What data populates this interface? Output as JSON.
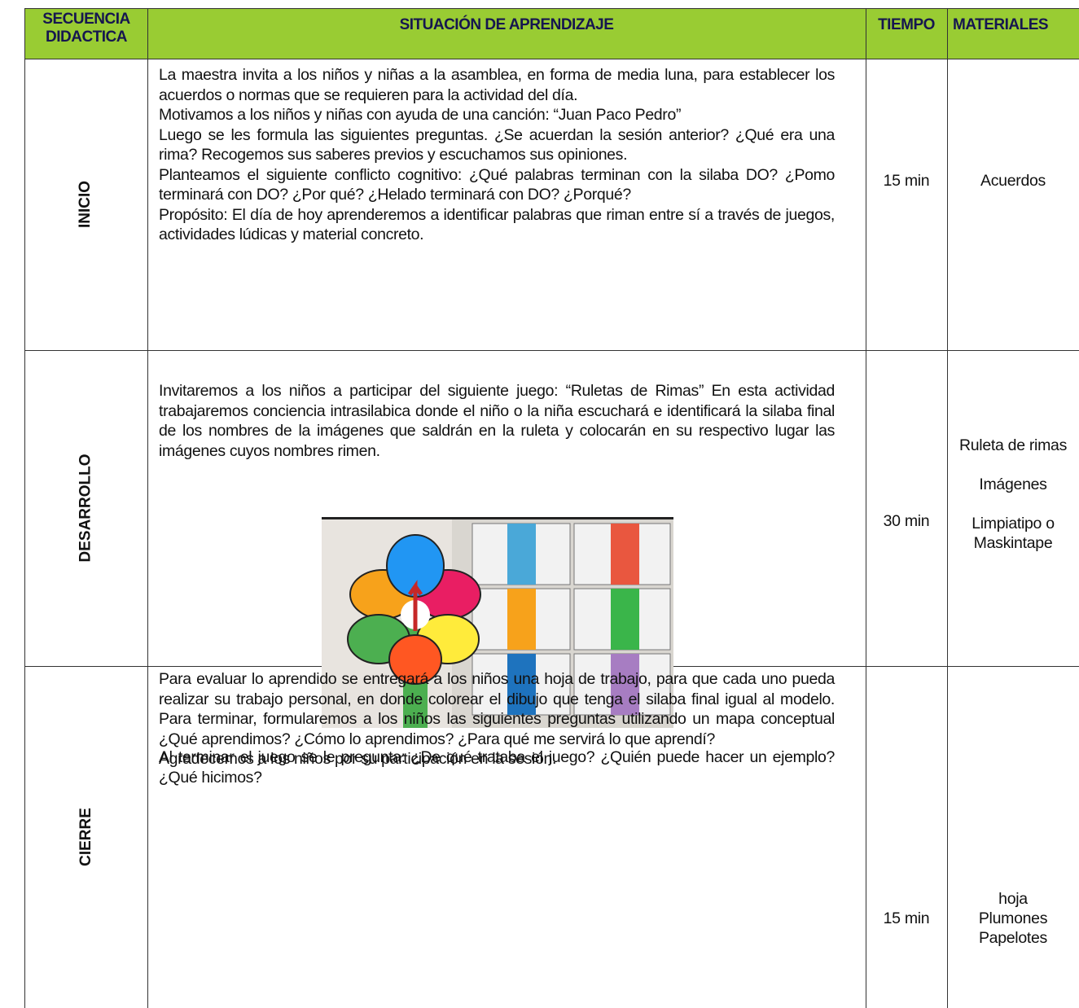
{
  "header": {
    "columns": [
      "SECUENCIA DIDACTICA",
      "SITUACIÓN DE APRENDIZAJE",
      "TIEMPO",
      "MATERIALES"
    ]
  },
  "rows": [
    {
      "stage": "INICIO",
      "content": [
        "La maestra invita a los niños y niñas a la asamblea, en forma de media luna, para establecer los acuerdos o normas que se requieren para la actividad del día.",
        "Motivamos a los niños y niñas con ayuda de una canción: “Juan Paco Pedro”",
        "Luego se les formula las siguientes preguntas. ¿Se acuerdan la sesión anterior? ¿Qué era una rima? Recogemos sus saberes previos y escuchamos sus opiniones.",
        "Planteamos el siguiente conflicto cognitivo: ¿Qué palabras terminan con la silaba DO? ¿Pomo terminará con DO? ¿Por qué? ¿Helado terminará con DO? ¿Porqué?",
        "Propósito: El día de hoy aprenderemos a identificar palabras que riman entre sí a través de juegos, actividades lúdicas y material concreto."
      ],
      "time": "15 min",
      "materials": [
        "Acuerdos"
      ]
    },
    {
      "stage": "DESARROLLO",
      "content": [
        "Invitaremos a los niños a participar del siguiente juego: “Ruletas de Rimas” En esta actividad trabajaremos conciencia intrasilabica donde el niño o la niña escuchará e identificará la silaba final de los nombres de la imágenes que saldrán en la ruleta y colocarán en su respectivo lugar las imágenes cuyos nombres rimen."
      ],
      "content_after": [
        "Al terminar el juego se le pregunta: ¿De qué trataba el juego? ¿Quién puede hacer un ejemplo? ¿Qué hicimos?"
      ],
      "time": "30 min",
      "materials": [
        "Ruleta de rimas",
        "Imágenes",
        "Limpiatipo o Maskintape"
      ]
    },
    {
      "stage": "CIERRE",
      "content": [
        "Para evaluar lo aprendido se entregará a los niños una hoja de trabajo, para que cada uno pueda realizar su trabajo personal, en donde colorear el dibujo que tenga el silaba final igual al modelo.  Para terminar, formularemos a los niños las siguientes preguntas utilizando un mapa conceptual ¿Qué aprendimos? ¿Cómo lo aprendimos? ¿Para qué me servirá lo que aprendí?",
        "Agradecemos a los niños por su participación en la sesión."
      ],
      "time": "15 min",
      "materials": [
        "hoja",
        "Plumones",
        "Papelotes"
      ]
    }
  ]
}
